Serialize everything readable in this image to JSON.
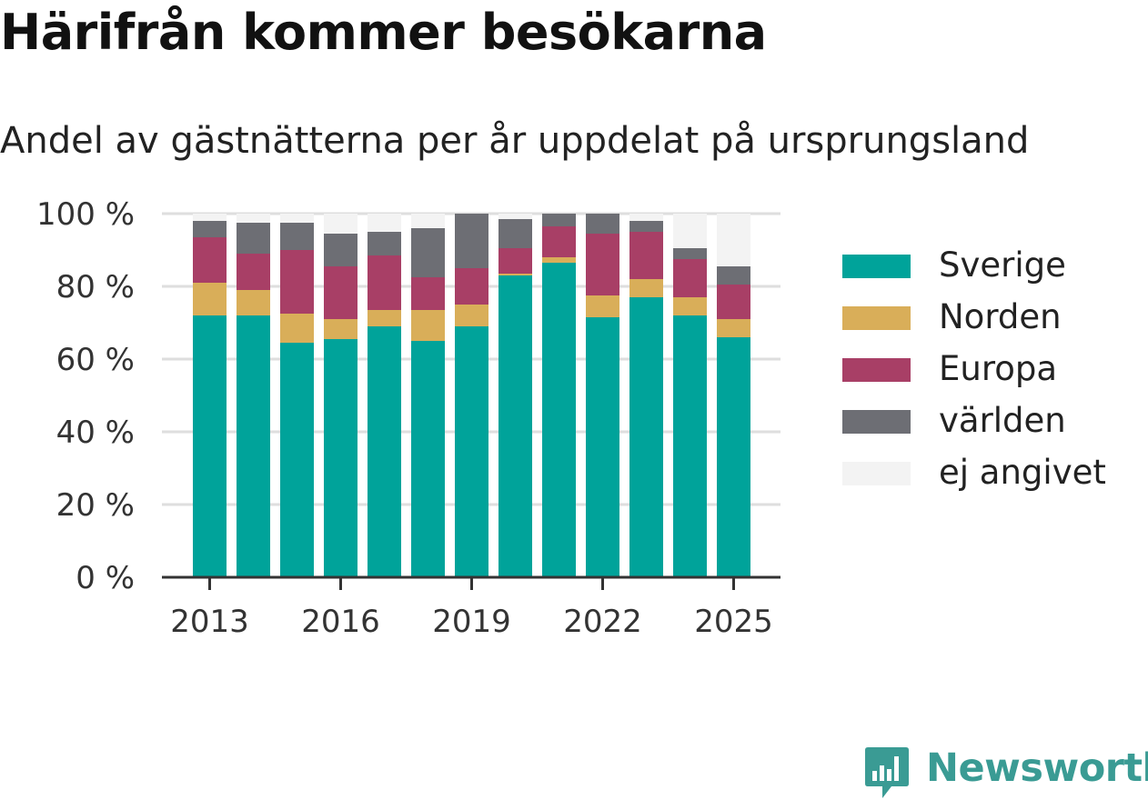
{
  "title": "Härifrån kommer besökarna",
  "subtitle": "Andel av gästnätterna per år uppdelat på ursprungsland",
  "brand": {
    "name": "Newsworthy",
    "color": "#3a9b94"
  },
  "chart_data": {
    "type": "bar",
    "stacked": true,
    "title": "Härifrån kommer besökarna",
    "subtitle": "Andel av gästnätterna per år uppdelat på ursprungsland",
    "xlabel": "",
    "ylabel": "",
    "ylim": [
      0,
      100
    ],
    "y_ticks": [
      "0 %",
      "20 %",
      "40 %",
      "60 %",
      "80 %",
      "100 %"
    ],
    "y_tick_values": [
      0,
      20,
      40,
      60,
      80,
      100
    ],
    "x_ticks": [
      "2013",
      "2016",
      "2019",
      "2022",
      "2025"
    ],
    "categories": [
      "2013",
      "2014",
      "2015",
      "2016",
      "2017",
      "2018",
      "2019",
      "2020",
      "2021",
      "2022",
      "2023",
      "2024",
      "2025"
    ],
    "grid": true,
    "legend_position": "right",
    "series": [
      {
        "name": "Sverige",
        "color": "#00a39a",
        "values": [
          72,
          72,
          64.5,
          65.5,
          69,
          65,
          69,
          83,
          86.5,
          71.5,
          77,
          72,
          66
        ]
      },
      {
        "name": "Norden",
        "color": "#d9ae59",
        "values": [
          9,
          7,
          8,
          5.5,
          4.5,
          8.5,
          6,
          0.5,
          1.5,
          6,
          5,
          5,
          5
        ]
      },
      {
        "name": "Europa",
        "color": "#a83f66",
        "values": [
          12.5,
          10,
          17.5,
          14.5,
          15,
          9,
          10,
          7,
          8.5,
          17,
          13,
          10.5,
          9.5
        ]
      },
      {
        "name": "världen",
        "color": "#6d6e74",
        "values": [
          4.5,
          8.5,
          7.5,
          9,
          6.5,
          13.5,
          15,
          8,
          3.5,
          5.5,
          3,
          3,
          5
        ]
      },
      {
        "name": "ej angivet",
        "color": "#f3f3f3",
        "values": [
          2,
          2.5,
          2.5,
          5.5,
          5,
          4,
          0,
          1.5,
          0,
          0,
          2,
          9.5,
          14.5
        ]
      }
    ]
  }
}
